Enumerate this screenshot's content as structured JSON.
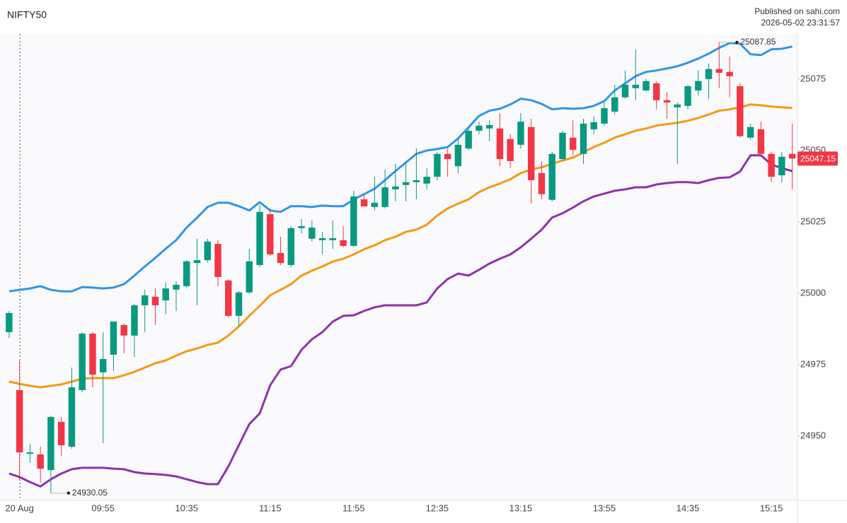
{
  "header": {
    "title": "NIFTY50",
    "published": "Published on sahi.com",
    "timestamp": "2026-05-02 23:31:57"
  },
  "chart_data": {
    "type": "candlestick",
    "categories": [
      null,
      "20 Aug",
      null,
      null,
      null,
      null,
      null,
      null,
      null,
      "09:55",
      null,
      null,
      null,
      null,
      null,
      null,
      null,
      "10:35",
      null,
      null,
      null,
      null,
      null,
      null,
      null,
      "11:15",
      null,
      null,
      null,
      null,
      null,
      null,
      null,
      "11:55",
      null,
      null,
      null,
      null,
      null,
      null,
      null,
      "12:35",
      null,
      null,
      null,
      null,
      null,
      null,
      null,
      "13:15",
      null,
      null,
      null,
      null,
      null,
      null,
      null,
      "13:55",
      null,
      null,
      null,
      null,
      null,
      null,
      null,
      "14:35",
      null,
      null,
      null,
      null,
      null,
      null,
      null,
      "15:15",
      null,
      null
    ],
    "open": [
      24986.4,
      24966.1,
      24943.8,
      24943.6,
      24938.1,
      24955.0,
      24946.3,
      24966.1,
      24985.9,
      24972.3,
      24978.5,
      24988.9,
      24985.2,
      24995.8,
      24998.8,
      24997.5,
      25001.3,
      25002.5,
      25010.6,
      25011.6,
      25017.3,
      25004.5,
      24992.1,
      25000.3,
      25009.9,
      25027.7,
      25014.1,
      25009.9,
      25022.8,
      25019.1,
      25018.6,
      25018.6,
      25018.6,
      25016.6,
      25032.9,
      25030.2,
      25030.2,
      25036.4,
      25037.9,
      25038.9,
      25038.4,
      25040.8,
      25048.8,
      25044.5,
      25050.7,
      25056.9,
      25057.7,
      25057.7,
      25054.0,
      25052.0,
      25058.2,
      25042.1,
      25032.7,
      25047.0,
      25054.5,
      25048.8,
      25057.4,
      25059.4,
      25063.6,
      25068.6,
      25071.8,
      25071.0,
      25073.5,
      25067.6,
      25065.1,
      25065.6,
      25071.0,
      25075.0,
      25078.5,
      25077.5,
      25072.5,
      25054.5,
      25057.4,
      25048.8,
      25041.3,
      25048.8
    ],
    "high": [
      24993.8,
      24976.5,
      24947.3,
      24946.3,
      24957.2,
      24956.7,
      24974.0,
      24986.4,
      24986.4,
      24986.4,
      24990.1,
      24989.4,
      24996.3,
      25001.3,
      25001.7,
      25003.7,
      25004.2,
      25011.6,
      25019.1,
      25019.1,
      25018.6,
      25004.9,
      25000.8,
      25015.6,
      25030.9,
      25029.7,
      25019.8,
      25023.5,
      25026.0,
      25025.5,
      25021.5,
      25025.5,
      25023.5,
      25035.9,
      25034.7,
      25040.8,
      25043.3,
      25045.3,
      25045.8,
      25050.7,
      25043.8,
      25049.5,
      25050.7,
      25054.5,
      25057.7,
      25060.1,
      25060.6,
      25063.1,
      25055.7,
      25063.1,
      25061.1,
      25046.3,
      25049.5,
      25056.9,
      25060.6,
      25061.1,
      25061.9,
      25066.8,
      25073.0,
      25078.0,
      25085.4,
      25075.0,
      25074.3,
      25070.5,
      25066.8,
      25073.0,
      25078.0,
      25080.5,
      25087.85,
      25082.9,
      25073.5,
      25059.4,
      25060.1,
      25049.5,
      25049.5,
      25059.4
    ],
    "low": [
      24984.4,
      24934.4,
      24940.6,
      24933.7,
      24930.05,
      24943.1,
      24945.6,
      24965.3,
      24967.1,
      24947.5,
      24972.8,
      24979.0,
      24977.7,
      24986.4,
      24988.9,
      24992.6,
      24993.8,
      25001.7,
      24995.8,
      25010.6,
      25002.5,
      24991.4,
      24988.4,
      24999.8,
      25009.2,
      25013.1,
      25009.9,
      25009.2,
      25021.0,
      25018.1,
      25013.6,
      25015.6,
      25016.1,
      25016.1,
      25030.4,
      25029.0,
      25029.7,
      25032.2,
      25032.2,
      25032.9,
      25036.4,
      25039.6,
      25040.8,
      25042.1,
      25050.2,
      25055.7,
      25053.2,
      25044.5,
      25043.8,
      25050.7,
      25031.4,
      25032.9,
      25032.2,
      25046.3,
      25048.3,
      25045.3,
      25055.7,
      25058.7,
      25062.6,
      25068.1,
      25067.6,
      25070.6,
      25064.4,
      25061.1,
      25045.3,
      25064.4,
      25069.3,
      25068.1,
      25071.8,
      25068.6,
      25054.5,
      25053.7,
      25048.8,
      25038.9,
      25038.9,
      25036.4
    ],
    "close": [
      24993.1,
      24944.3,
      24944.3,
      24938.6,
      24956.7,
      24946.8,
      24967.1,
      24985.9,
      24971.5,
      24977.0,
      24990.1,
      24985.2,
      24995.8,
      24999.3,
      24995.8,
      25001.7,
      25003.0,
      25011.2,
      25011.6,
      25018.1,
      25005.7,
      24992.1,
      25000.3,
      25011.2,
      25028.5,
      25013.6,
      25010.6,
      25022.8,
      25023.5,
      25023.0,
      25019.3,
      25019.3,
      25016.6,
      25033.9,
      25030.4,
      25031.7,
      25037.1,
      25037.4,
      25038.9,
      25039.6,
      25040.8,
      25048.8,
      25047.0,
      25052.0,
      25056.9,
      25058.7,
      25058.9,
      25047.0,
      25046.3,
      25060.1,
      25039.6,
      25034.7,
      25048.8,
      25056.2,
      25050.2,
      25059.4,
      25059.9,
      25064.8,
      25068.6,
      25073.0,
      25073.0,
      25074.3,
      25067.6,
      25066.8,
      25066.1,
      25072.5,
      25074.3,
      25078.5,
      25077.2,
      25076.0,
      25055.0,
      25058.2,
      25048.8,
      25040.8,
      25047.8,
      25047.15
    ],
    "up_color": "#089981",
    "down_color": "#f23645",
    "series": [
      {
        "color": "#2f96e6",
        "values": [
          25000.7,
          25001.2,
          25001.7,
          25002.5,
          25001.2,
          25000.7,
          25000.7,
          25002.2,
          25002.0,
          25001.7,
          25002.0,
          25003.2,
          25006.2,
          25009.4,
          25012.4,
          25015.6,
          25018.6,
          25023.0,
          25026.5,
          25030.2,
          25031.7,
          25031.7,
          25030.5,
          25029.0,
          25031.9,
          25029.0,
          25028.5,
          25030.5,
          25030.5,
          25030.2,
          25030.7,
          25030.5,
          25030.5,
          25032.9,
          25034.7,
          25036.6,
          25039.6,
          25042.8,
          25045.8,
          25048.8,
          25050.0,
          25050.5,
          25051.2,
          25054.2,
          25058.1,
          25062.1,
          25063.9,
          25064.6,
          25066.1,
          25068.1,
          25067.6,
          25066.3,
          25064.4,
          25064.8,
          25064.6,
          25064.8,
          25065.6,
          25067.3,
          25071.0,
          25073.5,
          25076.0,
          25077.5,
          25078.0,
          25078.7,
          25079.5,
          25080.7,
          25082.2,
          25083.9,
          25085.9,
          25087.6,
          25087.4,
          25083.7,
          25083.4,
          25085.4,
          25085.6,
          25086.4
        ]
      },
      {
        "color": "#f29b12",
        "values": [
          24969.1,
          24968.3,
          24967.6,
          24967.1,
          24967.6,
          24968.1,
          24969.1,
          24970.1,
          24970.3,
          24970.3,
          24970.3,
          24971.3,
          24972.5,
          24974.0,
          24975.5,
          24976.5,
          24978.2,
          24979.7,
          24980.7,
          24981.9,
          24982.7,
          24985.2,
          24988.4,
          24992.1,
          24995.6,
          24999.3,
          25001.2,
          25003.2,
          25006.2,
          25007.9,
          25009.4,
          25011.1,
          25012.1,
          25013.6,
          25015.4,
          25016.8,
          25018.6,
          25019.8,
          25021.5,
          25022.3,
          25024.0,
          25027.2,
          25029.7,
          25031.4,
          25032.9,
          25035.4,
          25037.1,
          25038.4,
          25039.9,
          25042.1,
          25043.3,
          25044.1,
          25045.3,
          25046.5,
          25047.5,
          25049.3,
          25051.2,
          25052.7,
          25054.5,
          25055.7,
          25056.9,
          25057.7,
          25058.7,
          25059.2,
          25059.7,
          25060.4,
          25061.4,
          25062.6,
          25063.9,
          25064.4,
          25065.1,
          25066.1,
          25065.8,
          25065.4,
          25065.1,
          25064.9
        ]
      },
      {
        "color": "#9131a8",
        "values": [
          24936.9,
          24935.7,
          24933.9,
          24932.4,
          24934.9,
          24936.9,
          24938.4,
          24938.9,
          24938.9,
          24938.9,
          24938.6,
          24938.4,
          24937.4,
          24936.9,
          24936.7,
          24936.4,
          24935.9,
          24934.9,
          24933.9,
          24933.2,
          24933.2,
          24939.4,
          24946.8,
          24954.2,
          24957.9,
          24967.8,
          24973.3,
          24974.5,
          24980.2,
          24983.9,
          24986.4,
          24990.1,
          24992.1,
          24992.3,
          24993.8,
          24995.1,
          24995.8,
          24995.8,
          24995.8,
          24995.8,
          24996.8,
          25001.7,
          25005.0,
          25006.9,
          25006.2,
          25008.2,
          25010.4,
          25012.1,
          25013.6,
          25016.1,
          25019.1,
          25022.3,
          25026.5,
          25028.0,
          25030.0,
          25032.2,
          25033.9,
          25034.9,
          25035.9,
          25036.4,
          25037.1,
          25037.1,
          25038.1,
          25038.6,
          25038.9,
          25038.9,
          25038.6,
          25039.6,
          25040.4,
          25040.6,
          25042.6,
          25048.3,
          25048.3,
          25045.1,
          25043.8,
          25042.8
        ]
      }
    ],
    "ylim": [
      24927.5,
      25090.8
    ],
    "yticks": [
      24950,
      24975,
      25000,
      25025,
      25050,
      25075
    ],
    "grid": false
  }
}
